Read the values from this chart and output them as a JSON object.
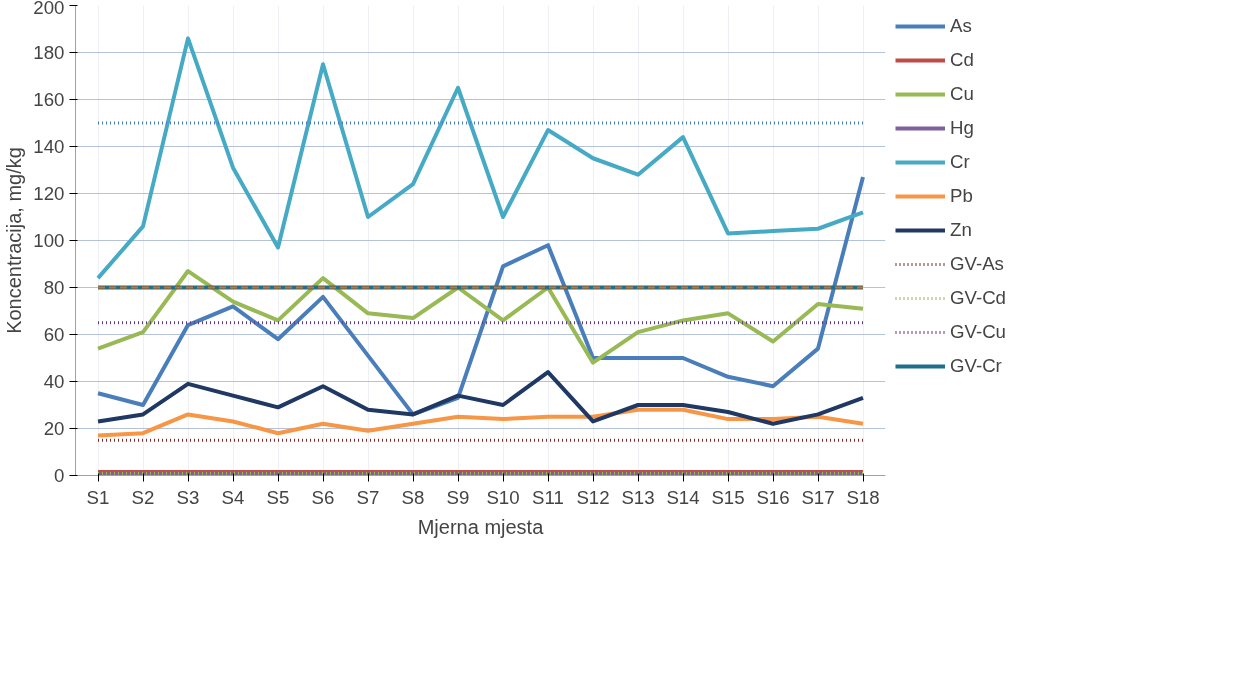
{
  "chart_data": {
    "type": "line",
    "xlabel": "Mjerna mjesta",
    "ylabel": "Koncentracija, mg/kg",
    "categories": [
      "S1",
      "S2",
      "S3",
      "S4",
      "S5",
      "S6",
      "S7",
      "S8",
      "S9",
      "S10",
      "S11",
      "S12",
      "S13",
      "S14",
      "S15",
      "S16",
      "S17",
      "S18"
    ],
    "ylim": [
      0,
      200
    ],
    "yticks": [
      0,
      20,
      40,
      60,
      80,
      100,
      120,
      140,
      160,
      180,
      200
    ],
    "grid": true,
    "legend": "right",
    "marker": "none",
    "series": [
      {
        "name": "As",
        "color": "#4a7ebb",
        "line_style": "solid",
        "values": [
          35,
          30,
          64,
          72,
          58,
          76,
          51,
          26,
          33,
          89,
          98,
          50,
          50,
          50,
          42,
          38,
          54,
          127
        ]
      },
      {
        "name": "Cd",
        "color": "#be4b48",
        "line_style": "solid",
        "values": [
          1.5,
          1.5,
          1.5,
          1.5,
          1.5,
          1.5,
          1.5,
          1.5,
          1.5,
          1.5,
          1.5,
          1.5,
          1.5,
          1.5,
          1.5,
          1.5,
          1.5,
          1.5
        ]
      },
      {
        "name": "Cu",
        "color": "#98b954",
        "line_style": "solid",
        "values": [
          54,
          61,
          87,
          74,
          66,
          84,
          69,
          67,
          80,
          66,
          80,
          48,
          61,
          66,
          69,
          57,
          73,
          71
        ]
      },
      {
        "name": "Hg",
        "color": "#7d60a0",
        "line_style": "solid",
        "values": [
          0.5,
          0.5,
          0.5,
          0.5,
          0.5,
          0.5,
          0.5,
          0.5,
          0.5,
          0.5,
          0.5,
          0.5,
          0.5,
          0.5,
          0.5,
          0.5,
          0.5,
          0.5
        ]
      },
      {
        "name": "Cr",
        "color": "#46aac5",
        "line_style": "solid",
        "values": [
          84,
          106,
          186,
          131,
          97,
          175,
          110,
          124,
          165,
          110,
          147,
          135,
          128,
          144,
          103,
          104,
          105,
          112
        ]
      },
      {
        "name": "Pb",
        "color": "#f79646",
        "line_style": "solid",
        "values": [
          17,
          18,
          26,
          23,
          18,
          22,
          19,
          22,
          25,
          24,
          25,
          25,
          28,
          28,
          24,
          24,
          25,
          22
        ]
      },
      {
        "name": "Zn",
        "color": "#1f3864",
        "line_style": "solid",
        "values": [
          23,
          26,
          39,
          34,
          29,
          38,
          28,
          26,
          34,
          30,
          44,
          23,
          30,
          30,
          27,
          22,
          26,
          33
        ]
      },
      {
        "name": "GV-As",
        "color": "#7b2c2c",
        "line_style": "dotted",
        "values": [
          15,
          15,
          15,
          15,
          15,
          15,
          15,
          15,
          15,
          15,
          15,
          15,
          15,
          15,
          15,
          15,
          15,
          15
        ]
      },
      {
        "name": "GV-Cd",
        "color": "#98b954",
        "line_style": "dotted",
        "values": [
          1,
          1,
          1,
          1,
          1,
          1,
          1,
          1,
          1,
          1,
          1,
          1,
          1,
          1,
          1,
          1,
          1,
          1
        ]
      },
      {
        "name": "GV-Cu",
        "color": "#5f3c8a",
        "line_style": "dotted",
        "values": [
          65,
          65,
          65,
          65,
          65,
          65,
          65,
          65,
          65,
          65,
          65,
          65,
          65,
          65,
          65,
          65,
          65,
          65
        ]
      },
      {
        "name": "GV-Cr",
        "color": "#1f6e8c",
        "line_style": "solid",
        "values": [
          80,
          80,
          80,
          80,
          80,
          80,
          80,
          80,
          80,
          80,
          80,
          80,
          80,
          80,
          80,
          80,
          80,
          80
        ]
      },
      {
        "color": "#e46c0a",
        "line_style": "dashed",
        "values": [
          80,
          80,
          80,
          80,
          80,
          80,
          80,
          80,
          80,
          80,
          80,
          80,
          80,
          80,
          80,
          80,
          80,
          80
        ]
      },
      {
        "color": "#4a7ebb",
        "line_style": "dotted",
        "values": [
          150,
          150,
          150,
          150,
          150,
          150,
          150,
          150,
          150,
          150,
          150,
          150,
          150,
          150,
          150,
          150,
          150,
          150
        ]
      }
    ]
  }
}
